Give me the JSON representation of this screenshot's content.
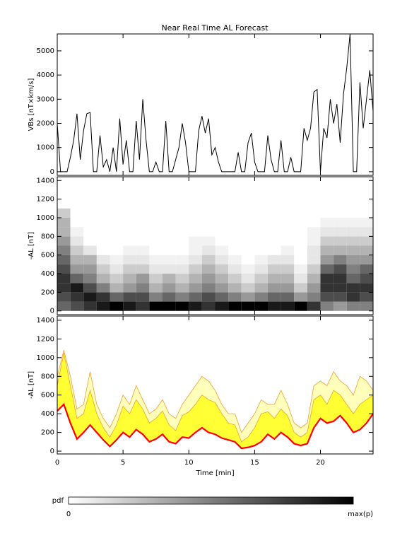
{
  "chart_data": [
    {
      "type": "line",
      "title": "Near Real Time AL Forecast",
      "y_label": "VBs [nT×km/s]",
      "x": [
        0,
        0.25,
        0.5,
        0.75,
        1,
        1.25,
        1.5,
        1.75,
        2,
        2.25,
        2.5,
        2.75,
        3,
        3.25,
        3.5,
        3.75,
        4,
        4.25,
        4.5,
        4.75,
        5,
        5.25,
        5.5,
        5.75,
        6,
        6.25,
        6.5,
        6.75,
        7,
        7.25,
        7.5,
        7.75,
        8,
        8.25,
        8.5,
        8.75,
        9,
        9.25,
        9.5,
        9.75,
        10,
        10.25,
        10.5,
        10.75,
        11,
        11.25,
        11.5,
        11.75,
        12,
        12.25,
        12.5,
        12.75,
        13,
        13.25,
        13.5,
        13.75,
        14,
        14.25,
        14.5,
        14.75,
        15,
        15.25,
        15.5,
        15.75,
        16,
        16.25,
        16.5,
        16.75,
        17,
        17.25,
        17.5,
        17.75,
        18,
        18.25,
        18.5,
        18.75,
        19,
        19.25,
        19.5,
        19.75,
        20,
        20.25,
        20.5,
        20.75,
        21,
        21.25,
        21.5,
        21.75,
        22,
        22.25,
        22.5,
        22.75,
        23,
        23.25,
        23.5,
        23.75,
        24
      ],
      "series": [
        {
          "color": "#000000",
          "values": [
            2000,
            0,
            0,
            0,
            600,
            1300,
            2400,
            500,
            1700,
            2400,
            2450,
            0,
            0,
            1500,
            200,
            500,
            0,
            1000,
            0,
            2200,
            300,
            1300,
            0,
            0,
            2100,
            500,
            3000,
            1300,
            0,
            0,
            400,
            0,
            0,
            2100,
            0,
            0,
            500,
            1000,
            2000,
            1200,
            0,
            0,
            0,
            1700,
            2300,
            1600,
            2200,
            700,
            1000,
            400,
            0,
            0,
            0,
            0,
            0,
            800,
            0,
            0,
            1200,
            1600,
            400,
            0,
            0,
            0,
            1500,
            500,
            0,
            0,
            1300,
            0,
            0,
            600,
            0,
            0,
            0,
            1800,
            1300,
            1800,
            3300,
            3400,
            0,
            1800,
            1400,
            3000,
            2000,
            2800,
            1200,
            3200,
            4300,
            5700,
            0,
            0,
            3700,
            1800,
            3000,
            4200,
            2500
          ]
        }
      ],
      "xlim": [
        0,
        24
      ],
      "xticks": [
        0,
        5,
        10,
        15,
        20
      ],
      "ylim": [
        -150,
        5700
      ],
      "yticks": [
        0,
        1000,
        2000,
        3000,
        4000,
        5000
      ]
    },
    {
      "type": "heatmap",
      "y_label": "-AL [nT]",
      "xbins": [
        0,
        1,
        2,
        3,
        4,
        5,
        6,
        7,
        8,
        9,
        10,
        11,
        12,
        13,
        14,
        15,
        16,
        17,
        18,
        19,
        20,
        21,
        22,
        23,
        24
      ],
      "ybins": [
        0,
        100,
        200,
        300,
        400,
        500,
        600,
        700,
        800,
        900,
        1000,
        1100
      ],
      "z": [
        [
          0.6,
          0.7,
          0.8,
          0.8,
          0.7,
          0.6,
          0.5,
          0.4,
          0.3,
          0.3,
          0.2
        ],
        [
          0.7,
          0.8,
          0.9,
          0.6,
          0.4,
          0.3,
          0.2,
          0.1,
          0.05,
          0,
          0
        ],
        [
          0.8,
          0.9,
          0.7,
          0.5,
          0.4,
          0.3,
          0.1,
          0,
          0,
          0,
          0
        ],
        [
          0.9,
          0.8,
          0.5,
          0.3,
          0.2,
          0.1,
          0,
          0,
          0,
          0,
          0
        ],
        [
          1,
          0.6,
          0.3,
          0.2,
          0.1,
          0.05,
          0,
          0,
          0,
          0,
          0
        ],
        [
          0.9,
          0.7,
          0.4,
          0.3,
          0.2,
          0.1,
          0.05,
          0,
          0,
          0,
          0
        ],
        [
          0.8,
          0.7,
          0.5,
          0.4,
          0.2,
          0.1,
          0.05,
          0,
          0,
          0,
          0
        ],
        [
          1,
          0.5,
          0.3,
          0.2,
          0.1,
          0.05,
          0,
          0,
          0,
          0,
          0
        ],
        [
          1,
          0.6,
          0.4,
          0.3,
          0.1,
          0.05,
          0,
          0,
          0,
          0,
          0
        ],
        [
          1,
          0.5,
          0.3,
          0.2,
          0.1,
          0.05,
          0,
          0,
          0,
          0,
          0
        ],
        [
          0.9,
          0.6,
          0.4,
          0.3,
          0.2,
          0.1,
          0.05,
          0.05,
          0,
          0,
          0
        ],
        [
          0.8,
          0.7,
          0.5,
          0.4,
          0.3,
          0.2,
          0.1,
          0.05,
          0,
          0,
          0
        ],
        [
          0.9,
          0.6,
          0.4,
          0.3,
          0.2,
          0.1,
          0.05,
          0,
          0,
          0,
          0
        ],
        [
          1,
          0.5,
          0.3,
          0.2,
          0.1,
          0.05,
          0,
          0,
          0,
          0,
          0
        ],
        [
          1,
          0.4,
          0.2,
          0.1,
          0.05,
          0,
          0,
          0,
          0,
          0,
          0
        ],
        [
          1,
          0.5,
          0.3,
          0.2,
          0.1,
          0.05,
          0,
          0,
          0,
          0,
          0
        ],
        [
          0.9,
          0.6,
          0.4,
          0.3,
          0.2,
          0.1,
          0,
          0,
          0,
          0,
          0
        ],
        [
          0.9,
          0.6,
          0.4,
          0.3,
          0.2,
          0.1,
          0.05,
          0,
          0,
          0,
          0
        ],
        [
          1,
          0.4,
          0.2,
          0.1,
          0.05,
          0,
          0,
          0,
          0,
          0,
          0
        ],
        [
          0.8,
          0.5,
          0.4,
          0.3,
          0.2,
          0.1,
          0.1,
          0.05,
          0.05,
          0,
          0
        ],
        [
          0.5,
          0.7,
          0.8,
          0.8,
          0.6,
          0.4,
          0.3,
          0.2,
          0.1,
          0.05,
          0
        ],
        [
          0.4,
          0.7,
          0.8,
          0.8,
          0.7,
          0.5,
          0.3,
          0.2,
          0.1,
          0.05,
          0
        ],
        [
          0.5,
          0.8,
          0.8,
          0.6,
          0.5,
          0.4,
          0.3,
          0.2,
          0.1,
          0.05,
          0
        ],
        [
          0.5,
          0.7,
          0.8,
          0.7,
          0.6,
          0.4,
          0.3,
          0.2,
          0.1,
          0.05,
          0
        ]
      ],
      "xlim": [
        0,
        24
      ],
      "xticks": [
        0,
        5,
        10,
        15,
        20
      ],
      "ylim": [
        -40,
        1440
      ],
      "yticks": [
        0,
        200,
        400,
        600,
        800,
        1000,
        1200,
        1400
      ]
    },
    {
      "type": "area",
      "y_label": "-AL [nT]",
      "x_label": "Time [min]",
      "x": [
        0,
        0.5,
        1,
        1.5,
        2,
        2.5,
        3,
        3.5,
        4,
        4.5,
        5,
        5.5,
        6,
        6.5,
        7,
        7.5,
        8,
        8.5,
        9,
        9.5,
        10,
        10.5,
        11,
        11.5,
        12,
        12.5,
        13,
        13.5,
        14,
        14.5,
        15,
        15.5,
        16,
        16.5,
        17,
        17.5,
        18,
        18.5,
        19,
        19.5,
        20,
        20.5,
        21,
        21.5,
        22,
        22.5,
        23,
        23.5,
        24
      ],
      "series": [
        {
          "color": "#ff0000",
          "fill": "#ffffff",
          "values": [
            430,
            500,
            300,
            130,
            200,
            280,
            200,
            120,
            50,
            120,
            200,
            150,
            230,
            180,
            100,
            130,
            180,
            100,
            80,
            150,
            140,
            200,
            250,
            200,
            180,
            140,
            120,
            100,
            30,
            40,
            60,
            100,
            180,
            130,
            200,
            150,
            80,
            60,
            80,
            250,
            350,
            300,
            320,
            380,
            300,
            200,
            230,
            300,
            400
          ]
        },
        {
          "color": "#f0a030",
          "fill": "#ffff33",
          "values": [
            700,
            1050,
            700,
            350,
            400,
            650,
            400,
            250,
            150,
            280,
            480,
            400,
            550,
            450,
            300,
            350,
            430,
            280,
            220,
            380,
            420,
            500,
            600,
            550,
            520,
            400,
            300,
            280,
            100,
            150,
            250,
            400,
            420,
            350,
            450,
            380,
            200,
            150,
            200,
            550,
            600,
            500,
            650,
            600,
            500,
            400,
            500,
            550,
            600
          ]
        },
        {
          "color": "#f0a030",
          "fill": "#ffffbb",
          "values": [
            800,
            1080,
            800,
            450,
            500,
            850,
            500,
            350,
            250,
            400,
            600,
            500,
            700,
            550,
            400,
            450,
            550,
            400,
            350,
            500,
            600,
            700,
            800,
            750,
            650,
            500,
            400,
            400,
            200,
            300,
            400,
            550,
            500,
            500,
            650,
            500,
            300,
            250,
            300,
            700,
            750,
            700,
            850,
            750,
            700,
            600,
            800,
            750,
            650
          ]
        }
      ],
      "xlim": [
        0,
        24
      ],
      "xticks": [
        0,
        5,
        10,
        15,
        20
      ],
      "ylim": [
        -30,
        1445
      ],
      "yticks": [
        0,
        200,
        400,
        600,
        800,
        1000,
        1200,
        1400
      ]
    }
  ],
  "colorbar": {
    "title": "pdf",
    "min_label": "0",
    "max_label": "max(p)"
  }
}
